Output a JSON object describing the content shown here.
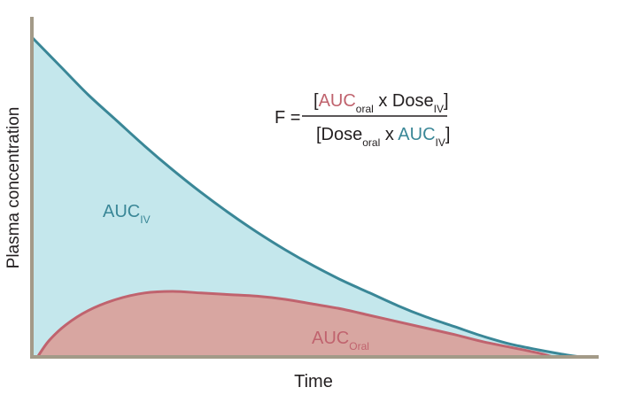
{
  "chart_data": {
    "type": "area",
    "title": "",
    "xlabel": "Time",
    "ylabel": "Plasma concentration",
    "grid": false,
    "legend": "none",
    "series": [
      {
        "name": "IV",
        "color": "#3a8797",
        "fill": "#c4e7ec",
        "label_main": "AUC",
        "label_sub": "IV",
        "x": [
          0,
          0.05,
          0.1,
          0.15,
          0.2,
          0.25,
          0.3,
          0.35,
          0.4,
          0.45,
          0.5,
          0.55,
          0.6,
          0.65,
          0.7,
          0.75,
          0.8,
          0.85,
          0.9,
          0.95,
          0.975
        ],
        "values": [
          1.0,
          0.91,
          0.82,
          0.74,
          0.66,
          0.585,
          0.515,
          0.45,
          0.39,
          0.335,
          0.285,
          0.24,
          0.2,
          0.16,
          0.125,
          0.095,
          0.065,
          0.04,
          0.022,
          0.006,
          0.0
        ]
      },
      {
        "name": "Oral",
        "color": "#c0636e",
        "fill": "#d8a6a1",
        "label_main": "AUC",
        "label_sub": "Oral",
        "x": [
          0.01,
          0.03,
          0.06,
          0.1,
          0.15,
          0.2,
          0.25,
          0.3,
          0.35,
          0.4,
          0.45,
          0.5,
          0.55,
          0.6,
          0.65,
          0.7,
          0.75,
          0.8,
          0.85,
          0.9,
          0.925
        ],
        "values": [
          0.0,
          0.05,
          0.1,
          0.145,
          0.18,
          0.2,
          0.205,
          0.2,
          0.195,
          0.19,
          0.18,
          0.165,
          0.15,
          0.13,
          0.11,
          0.09,
          0.07,
          0.048,
          0.03,
          0.012,
          0.0
        ]
      }
    ],
    "formula": {
      "lhs": "F =",
      "numerator": [
        {
          "t": "[",
          "role": "plain"
        },
        {
          "t": "AUC",
          "role": "oral"
        },
        {
          "t": "oral",
          "role": "sub"
        },
        {
          "t": " x Dose",
          "role": "plain"
        },
        {
          "t": "IV",
          "role": "sub"
        },
        {
          "t": "]",
          "role": "plain"
        }
      ],
      "denominator": [
        {
          "t": "[Dose",
          "role": "plain"
        },
        {
          "t": "oral",
          "role": "sub"
        },
        {
          "t": " x ",
          "role": "plain"
        },
        {
          "t": "AUC",
          "role": "iv"
        },
        {
          "t": "IV",
          "role": "sub"
        },
        {
          "t": "]",
          "role": "plain"
        }
      ]
    },
    "colors": {
      "axis": "#a39a88",
      "text": "#231f20"
    }
  }
}
